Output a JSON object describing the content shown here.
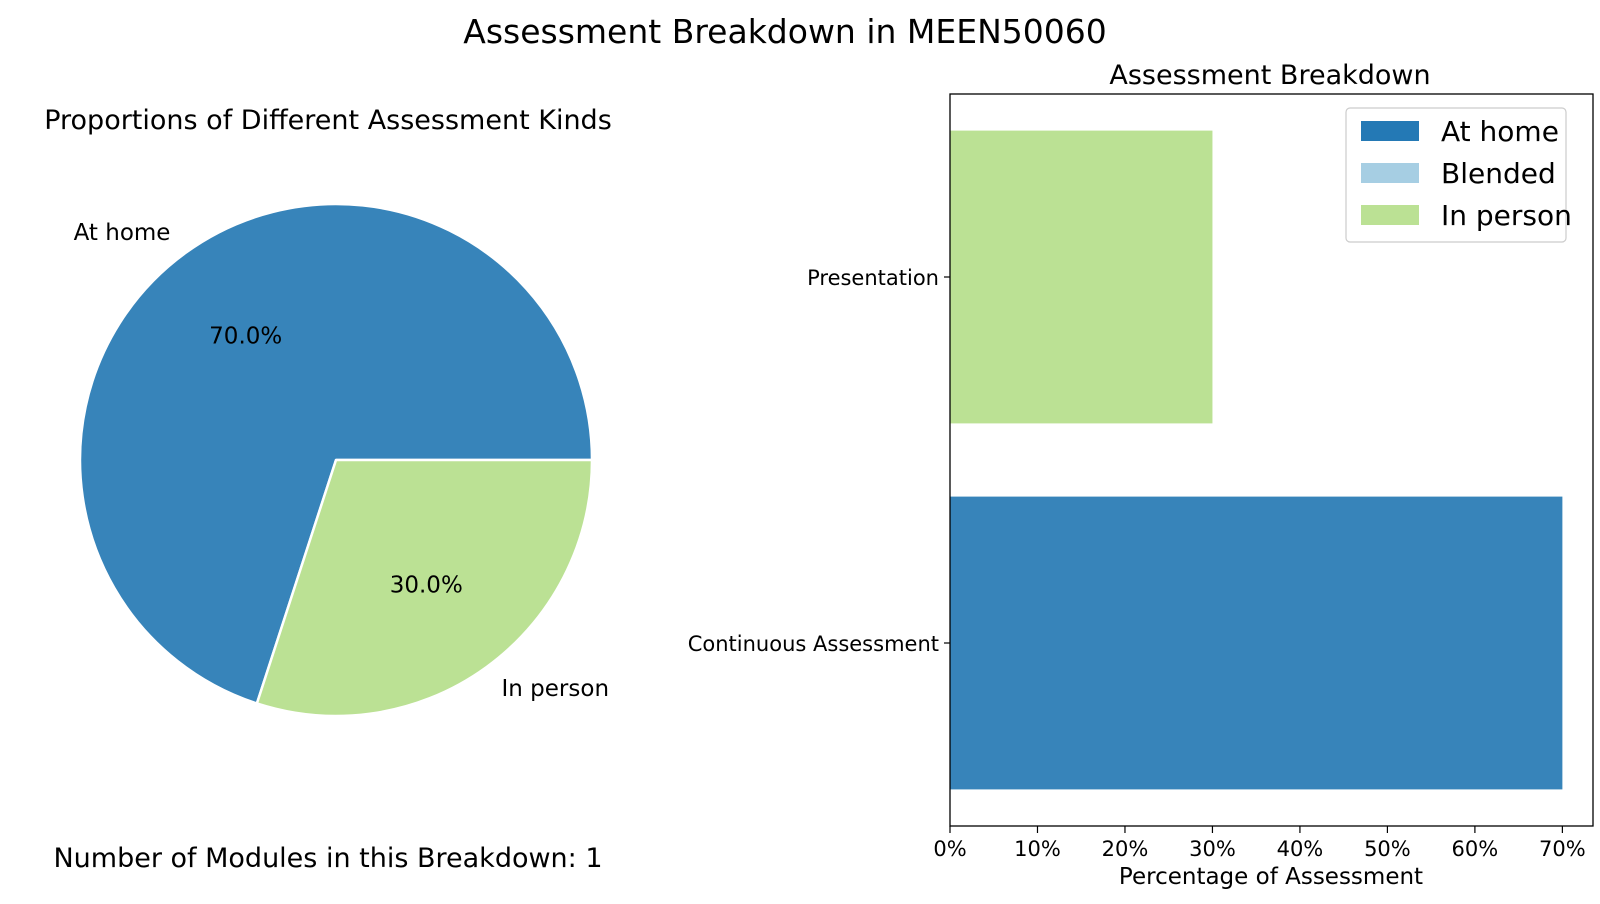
{
  "figure": {
    "suptitle": "Assessment Breakdown in MEEN50060",
    "footnote": "Number of Modules in this Breakdown: 1"
  },
  "colors": {
    "at_home": "#3784ba",
    "at_home_legend": "#2479b5",
    "blended": "#a6cee3",
    "in_person": "#bbe194",
    "edge": "#ffffff"
  },
  "chart_data": [
    {
      "type": "pie",
      "title": "Proportions of Different Assessment Kinds",
      "labels": [
        "At home",
        "In person"
      ],
      "values": [
        70.0,
        30.0
      ],
      "autopct": [
        "70.0%",
        "30.0%"
      ],
      "color_keys": [
        "at_home",
        "in_person"
      ],
      "start_angle": 0,
      "direction": "counterclockwise"
    },
    {
      "type": "bar",
      "orientation": "horizontal",
      "stacked": true,
      "title": "Assessment Breakdown",
      "xlabel": "Percentage of Assessment",
      "ylabel": "",
      "categories": [
        "Continuous Assessment",
        "Presentation"
      ],
      "series": [
        {
          "name": "At home",
          "color_key": "at_home",
          "legend_color_key": "at_home_legend",
          "values": [
            70,
            0
          ]
        },
        {
          "name": "Blended",
          "color_key": "blended",
          "legend_color_key": "blended",
          "values": [
            0,
            0
          ]
        },
        {
          "name": "In person",
          "color_key": "in_person",
          "legend_color_key": "in_person",
          "values": [
            0,
            30
          ]
        }
      ],
      "xlim": [
        0,
        73.5
      ],
      "xticks": [
        0,
        10,
        20,
        30,
        40,
        50,
        60,
        70
      ],
      "xtick_labels": [
        "0%",
        "10%",
        "20%",
        "30%",
        "40%",
        "50%",
        "60%",
        "70%"
      ],
      "legend_position": "top-right",
      "grid": false
    }
  ]
}
